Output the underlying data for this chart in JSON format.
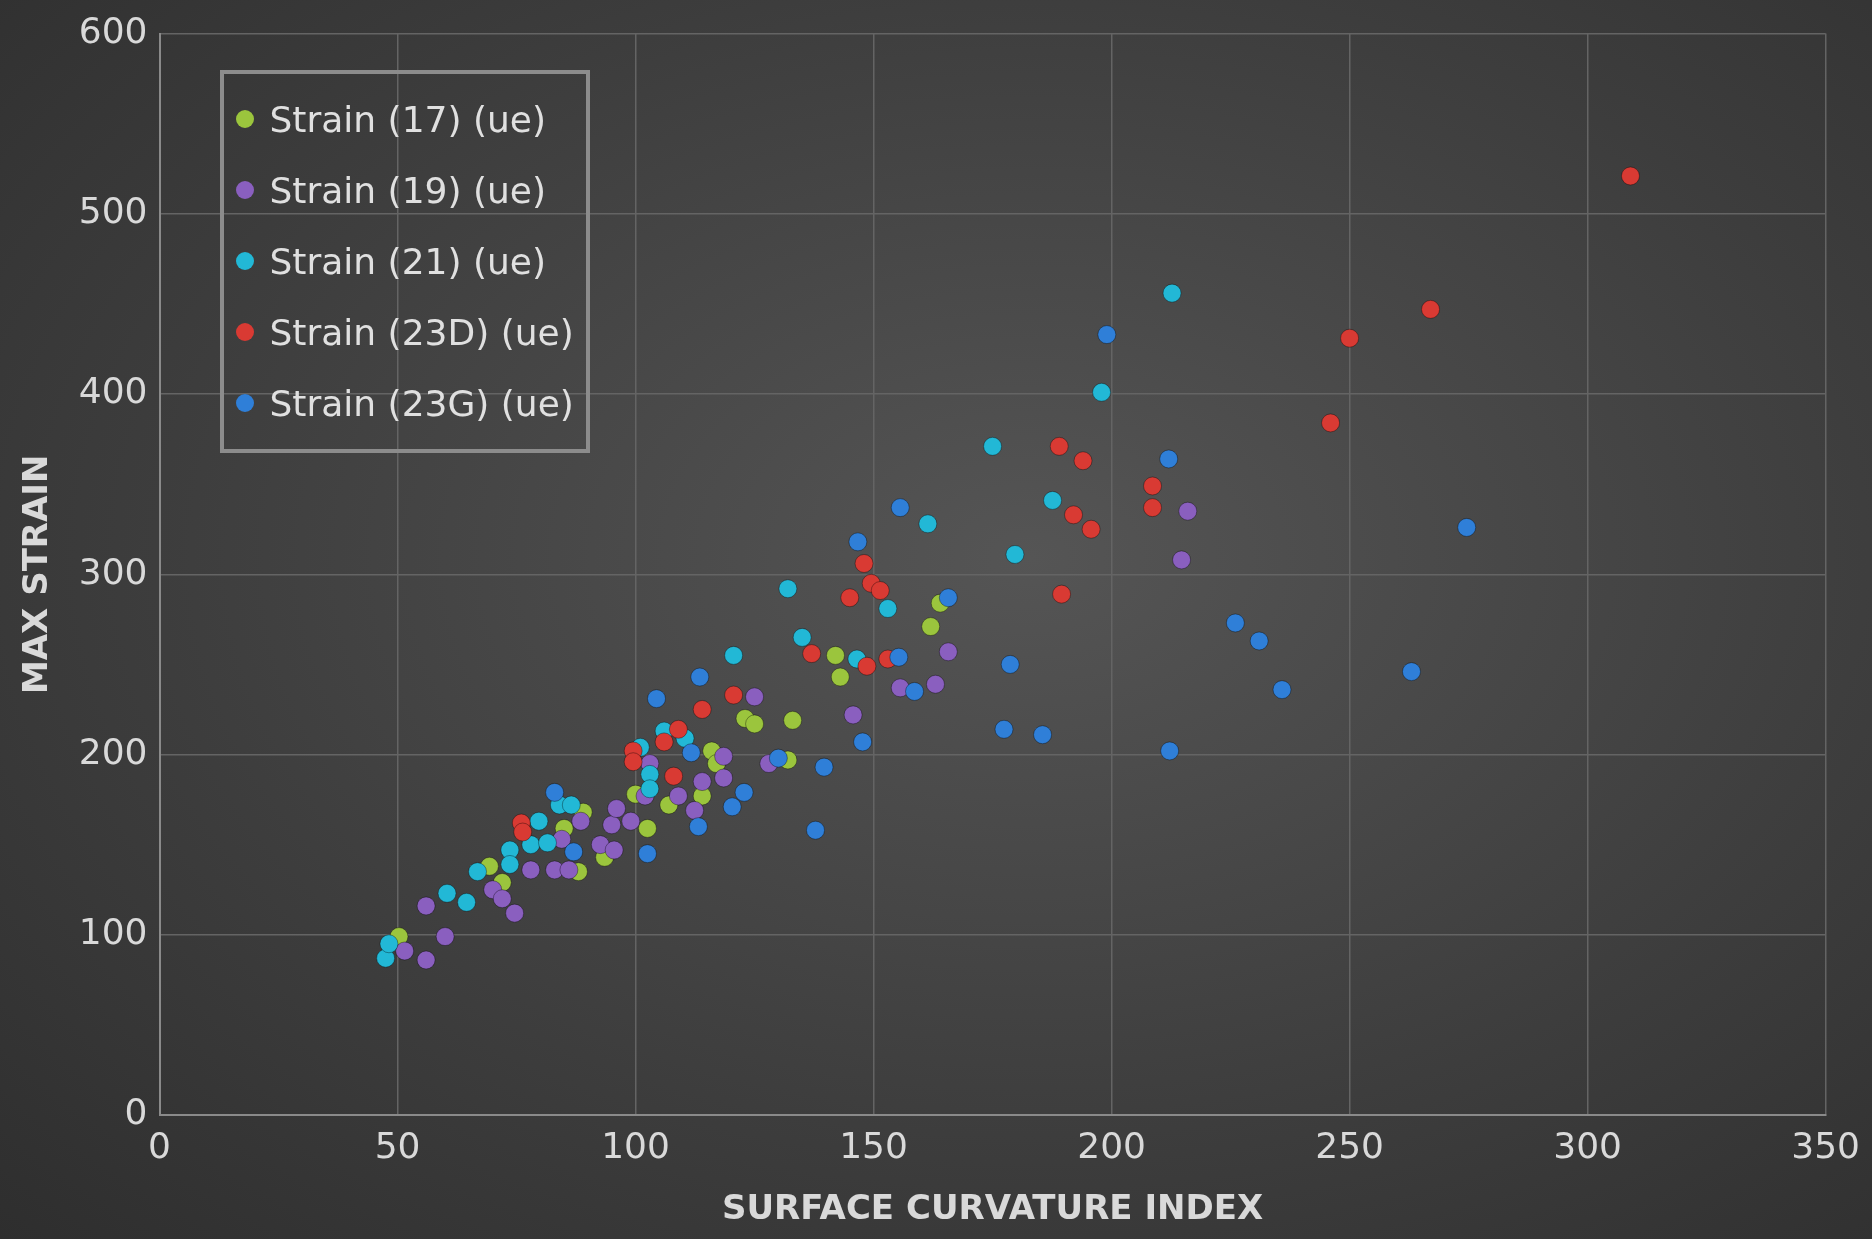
{
  "chart_data": {
    "type": "scatter",
    "xlabel": "SURFACE CURVATURE INDEX",
    "ylabel": "MAX STRAIN",
    "xlim": [
      0,
      350
    ],
    "ylim": [
      0,
      600
    ],
    "xticks": [
      0,
      50,
      100,
      150,
      200,
      250,
      300,
      350
    ],
    "yticks": [
      0,
      100,
      200,
      300,
      400,
      500,
      600
    ],
    "grid": true,
    "legend": "top left",
    "marker": "circle",
    "series": [
      {
        "name": "Strain (17) (ue)",
        "color": "#9bc53d",
        "x": [
          50.3,
          69.3,
          72,
          85,
          89,
          88,
          93.5,
          100,
          102.5,
          107,
          114,
          116,
          117,
          123,
          125,
          133,
          132,
          142,
          143,
          162,
          164
        ],
        "values": [
          99,
          138,
          129,
          159,
          168,
          135,
          143,
          178,
          159,
          172,
          177,
          202,
          195,
          220,
          217,
          219,
          197,
          255,
          243,
          271,
          284
        ]
      },
      {
        "name": "Strain (19) (ue)",
        "color": "#8a5fbf",
        "x": [
          51.5,
          56,
          56,
          60,
          70,
          72,
          74.6,
          78,
          83,
          84.5,
          86,
          88.5,
          92.6,
          95.5,
          95,
          96,
          99,
          102,
          103,
          109,
          112.4,
          114,
          118.5,
          118.5,
          125,
          128,
          145.7,
          155.6,
          163,
          165.7,
          214.7,
          216
        ],
        "values": [
          91,
          86,
          116,
          99,
          125,
          120,
          112,
          136,
          136,
          153,
          136,
          163,
          150,
          147,
          161,
          170,
          163,
          177,
          195,
          177,
          169,
          185,
          187,
          199,
          232,
          195,
          222,
          237,
          239,
          257,
          308,
          335
        ]
      },
      {
        "name": "Strain (21) (ue)",
        "color": "#22b8d6",
        "x": [
          47.5,
          48.2,
          60.4,
          64.5,
          66.8,
          73.6,
          73.6,
          78,
          79.7,
          81.5,
          84,
          86.5,
          101,
          103,
          103,
          106,
          110.4,
          120.6,
          132,
          135,
          146.5,
          153,
          161.4,
          175,
          179.7,
          187.6,
          197.9,
          212.7
        ],
        "values": [
          87,
          95,
          123,
          118,
          135,
          147,
          139,
          150,
          163,
          151,
          172,
          172,
          204,
          189,
          181,
          213,
          209,
          255,
          292,
          265,
          253,
          281,
          328,
          371,
          311,
          341,
          401,
          456
        ]
      },
      {
        "name": "Strain (23D) (ue)",
        "color": "#d93a33",
        "x": [
          76,
          76.3,
          99.5,
          99.5,
          106,
          109,
          108,
          114,
          120.6,
          137,
          145,
          148,
          148.6,
          149.5,
          151.4,
          153,
          189,
          189.5,
          192,
          194,
          195.7,
          208.6,
          208.6,
          246,
          250,
          267,
          309
        ],
        "values": [
          162,
          157,
          202,
          196,
          207,
          214,
          188,
          225,
          233,
          256,
          287,
          306,
          249,
          295,
          291,
          253,
          371,
          289,
          333,
          363,
          325,
          349,
          337,
          384,
          431,
          447,
          521
        ]
      },
      {
        "name": "Strain (23G) (ue)",
        "color": "#2f7fd8",
        "x": [
          83,
          87,
          102.5,
          104.4,
          111.7,
          113.2,
          113.5,
          120.3,
          122.8,
          130,
          137.8,
          139.6,
          146.7,
          147.7,
          155.3,
          155.6,
          158.6,
          165.7,
          177.4,
          178.7,
          185.5,
          199,
          212,
          212.2,
          226,
          231,
          235.8,
          263,
          274.6
        ],
        "values": [
          179,
          146,
          145,
          231,
          201,
          160,
          243,
          171,
          179,
          198,
          158,
          193,
          318,
          207,
          254,
          337,
          235,
          287,
          214,
          250,
          211,
          433,
          364,
          202,
          273,
          263,
          236,
          246,
          326
        ]
      }
    ]
  }
}
